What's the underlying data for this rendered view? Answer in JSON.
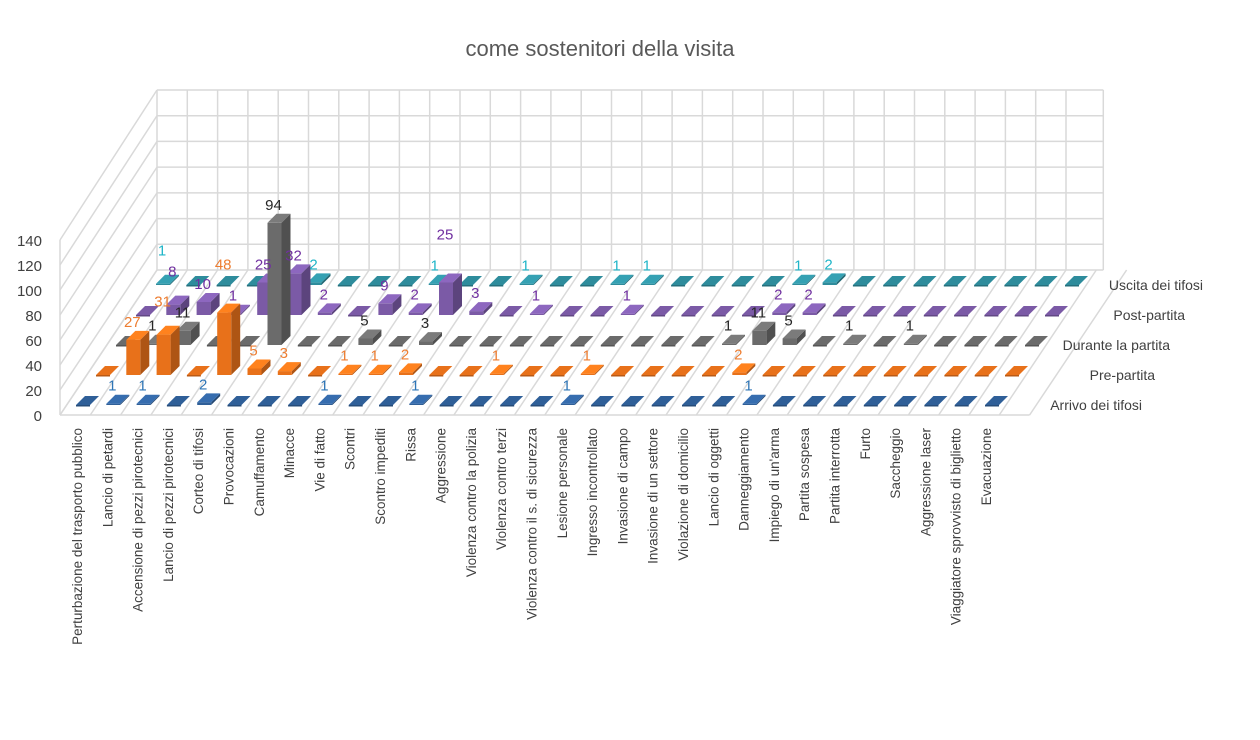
{
  "chart_data": {
    "type": "bar",
    "subtype": "3d-column",
    "title": "come sostenitori della visita",
    "xlabel": "",
    "ylabel": "",
    "ylim": [
      0,
      140
    ],
    "yticks": [
      "0",
      "20",
      "40",
      "60",
      "80",
      "100",
      "120",
      "140"
    ],
    "grid": true,
    "legend": "right (series axis labels)",
    "categories": [
      "Perturbazione del trasporto pubblico",
      "Lancio di petardi",
      "Accensione di pezzi pirotecnici",
      "Lancio di pezzi pirotecnici",
      "Corteo di tifosi",
      "Provocazioni",
      "Camuffamento",
      "Minacce",
      "Vie di fatto",
      "Scontri",
      "Scontro impediti",
      "Rissa",
      "Aggressione",
      "Violenza contro la polizia",
      "Violenza contro terzi",
      "Violenza contro il s. di sicurezza",
      "Lesione personale",
      "Ingresso incontrollato",
      "Invasione di campo",
      "Invasione di un settore",
      "Violazione di domicilio",
      "Lancio di oggetti",
      "Danneggiamento",
      "Impiego di un'arma",
      "Partita sospesa",
      "Partita interrotta",
      "Furto",
      "Saccheggio",
      "Aggressione laser",
      "Viaggiatore sprovvisto di biglietto",
      "Evacuazione"
    ],
    "series": [
      {
        "name": "Arrivo dei tifosi",
        "color": "#2f5f98",
        "label_color": "#2e75b6",
        "values": [
          0,
          1,
          1,
          0,
          2,
          0,
          0,
          0,
          1,
          0,
          0,
          1,
          0,
          0,
          0,
          0,
          1,
          0,
          0,
          0,
          0,
          0,
          1,
          0,
          0,
          0,
          0,
          0,
          0,
          0,
          0
        ]
      },
      {
        "name": "Pre-partita",
        "color": "#e8711a",
        "label_color": "#ed7d31",
        "values": [
          0,
          27,
          31,
          0,
          48,
          5,
          3,
          0,
          1,
          1,
          2,
          0,
          0,
          1,
          0,
          0,
          1,
          0,
          0,
          0,
          0,
          2,
          0,
          0,
          0,
          0,
          0,
          0,
          0,
          0,
          0
        ]
      },
      {
        "name": "Durante la partita",
        "color": "#6b6b6b",
        "label_color": "#262626",
        "values": [
          0,
          1,
          11,
          0,
          0,
          94,
          0,
          0,
          5,
          0,
          3,
          0,
          0,
          0,
          0,
          0,
          0,
          0,
          0,
          0,
          1,
          11,
          5,
          0,
          1,
          0,
          1,
          0,
          0,
          0,
          0
        ]
      },
      {
        "name": "Post-partita",
        "color": "#7b5aa6",
        "label_color": "#7030a0",
        "values": [
          0,
          8,
          10,
          1,
          25,
          32,
          2,
          0,
          9,
          2,
          25,
          3,
          0,
          1,
          0,
          0,
          1,
          0,
          0,
          0,
          0,
          2,
          2,
          0,
          0,
          0,
          0,
          0,
          0,
          0,
          0
        ]
      },
      {
        "name": "Uscita dei tifosi",
        "color": "#2e8c9c",
        "label_color": "#1fb5c8",
        "values": [
          1,
          0,
          0,
          0,
          0,
          2,
          0,
          0,
          0,
          1,
          0,
          0,
          1,
          0,
          0,
          1,
          1,
          0,
          0,
          0,
          0,
          1,
          2,
          0,
          0,
          0,
          0,
          0,
          0,
          0,
          0
        ]
      }
    ]
  }
}
